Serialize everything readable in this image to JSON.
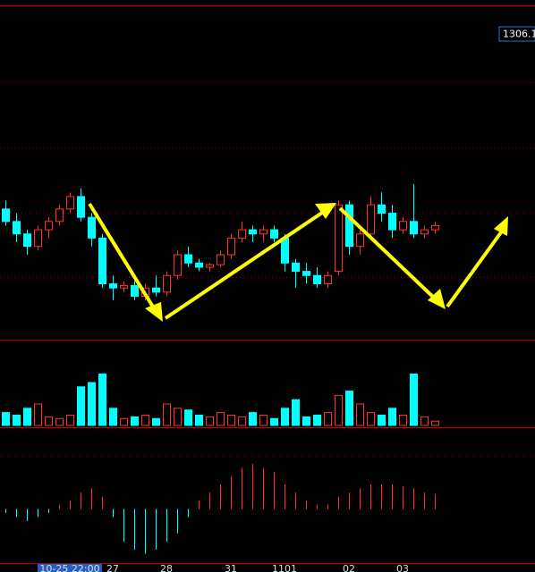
{
  "chart_data": {
    "type": "candlestick",
    "price_tag": "1306.1",
    "categories": [
      null,
      null,
      null,
      null,
      null,
      null,
      "10-25 22:00",
      null,
      null,
      null,
      "27",
      null,
      null,
      null,
      null,
      "28",
      null,
      null,
      null,
      null,
      null,
      "31",
      null,
      null,
      null,
      null,
      "1101",
      null,
      null,
      null,
      null,
      null,
      "02",
      null,
      null,
      null,
      null,
      "03",
      null,
      null,
      null
    ],
    "open": [
      1285.5,
      1284,
      1282.5,
      1281,
      1283,
      1284,
      1285.5,
      1287,
      1284.5,
      1282,
      1276.5,
      1276,
      1276.3,
      1275,
      1276,
      1275.5,
      1277.5,
      1280,
      1279,
      1278.5,
      1278.8,
      1280,
      1282,
      1283,
      1282.5,
      1283,
      1282,
      1279,
      1278,
      1277.5,
      1276.5,
      1278,
      1286,
      1281,
      1282.5,
      1286,
      1285,
      1283,
      1284,
      1282.5,
      1283
    ],
    "high": [
      1286.5,
      1285,
      1283,
      1283.5,
      1284.5,
      1286,
      1287.5,
      1288,
      1285,
      1282.5,
      1277.5,
      1276.8,
      1277,
      1276.5,
      1277.5,
      1278,
      1280.5,
      1281,
      1279.5,
      1279,
      1280.5,
      1282.5,
      1284,
      1283.5,
      1283.5,
      1283.5,
      1282.5,
      1279.5,
      1279,
      1278.5,
      1278,
      1286.5,
      1286.5,
      1283,
      1287,
      1287.5,
      1286,
      1284.5,
      1288.5,
      1283.5,
      1284
    ],
    "low": [
      1283.5,
      1281.5,
      1280,
      1280.5,
      1282,
      1283.5,
      1285,
      1284,
      1281,
      1276,
      1274.5,
      1275.5,
      1274.5,
      1274.5,
      1275,
      1275,
      1277,
      1278.5,
      1278,
      1278,
      1278.5,
      1279.5,
      1281.5,
      1281.5,
      1281.5,
      1281.5,
      1278,
      1276,
      1276.5,
      1276,
      1276,
      1277.5,
      1280,
      1280,
      1282,
      1284,
      1282,
      1282.5,
      1282,
      1282,
      1282.5
    ],
    "close": [
      1284,
      1282.5,
      1281,
      1283,
      1284,
      1285.5,
      1287,
      1284.5,
      1282,
      1276.5,
      1276,
      1276.3,
      1275,
      1276,
      1275.5,
      1277.5,
      1280,
      1279,
      1278.5,
      1278.8,
      1280,
      1282,
      1283,
      1282.5,
      1283,
      1282,
      1279,
      1278,
      1277.5,
      1276.5,
      1277.5,
      1286,
      1281,
      1282.5,
      1286,
      1285,
      1283,
      1284,
      1282.5,
      1283,
      1283.5
    ],
    "ylim": [
      1270,
      1310
    ],
    "volume": [
      15,
      12,
      20,
      25,
      10,
      8,
      12,
      45,
      50,
      60,
      20,
      8,
      10,
      12,
      8,
      25,
      20,
      18,
      12,
      10,
      15,
      12,
      10,
      15,
      12,
      8,
      20,
      30,
      10,
      12,
      15,
      35,
      40,
      25,
      15,
      12,
      20,
      12,
      60,
      10,
      5
    ],
    "volume_ylim": [
      0,
      100
    ],
    "macd": [
      -0.05,
      -0.1,
      -0.15,
      -0.1,
      -0.05,
      0.05,
      0.1,
      0.2,
      0.25,
      0.15,
      -0.1,
      -0.4,
      -0.5,
      -0.55,
      -0.5,
      -0.4,
      -0.3,
      -0.1,
      0.1,
      0.2,
      0.3,
      0.4,
      0.5,
      0.55,
      0.5,
      0.45,
      0.3,
      0.2,
      0.1,
      0.05,
      0.05,
      0.15,
      0.2,
      0.25,
      0.3,
      0.3,
      0.3,
      0.28,
      0.25,
      0.2,
      0.18
    ],
    "macd_ylim": [
      -0.5,
      1.0
    ],
    "up_color": "#ff3333",
    "down_color": "#00ffff"
  }
}
